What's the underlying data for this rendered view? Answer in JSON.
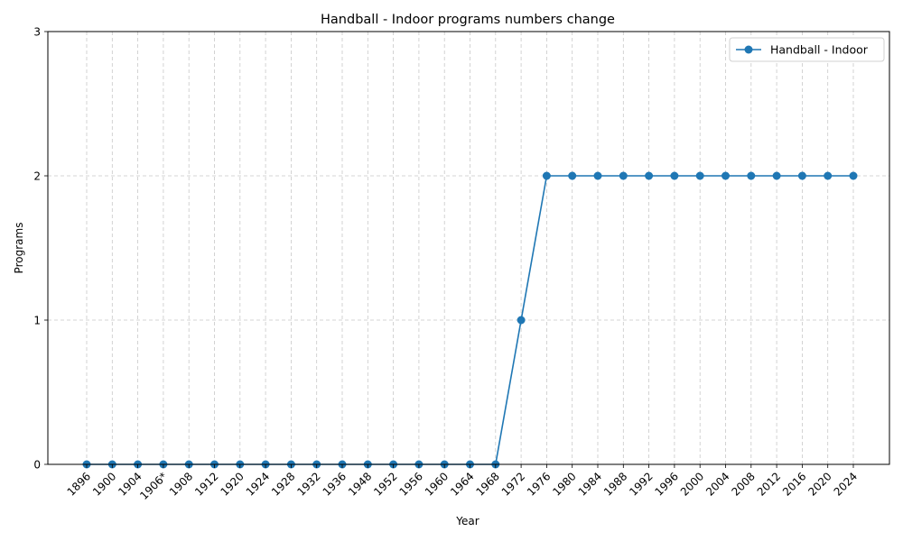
{
  "chart_data": {
    "type": "line",
    "title": "Handball - Indoor programs numbers change",
    "xlabel": "Year",
    "ylabel": "Programs",
    "categories": [
      "1896",
      "1900",
      "1904",
      "1906*",
      "1908",
      "1912",
      "1920",
      "1924",
      "1928",
      "1932",
      "1936",
      "1948",
      "1952",
      "1956",
      "1960",
      "1964",
      "1968",
      "1972",
      "1976",
      "1980",
      "1984",
      "1988",
      "1992",
      "1996",
      "2000",
      "2004",
      "2008",
      "2012",
      "2016",
      "2020",
      "2024"
    ],
    "series": [
      {
        "name": "Handball - Indoor",
        "color": "#1f77b4",
        "marker": "circle",
        "values": [
          0,
          0,
          0,
          0,
          0,
          0,
          0,
          0,
          0,
          0,
          0,
          0,
          0,
          0,
          0,
          0,
          0,
          1,
          2,
          2,
          2,
          2,
          2,
          2,
          2,
          2,
          2,
          2,
          2,
          2,
          2
        ]
      }
    ],
    "ylim": [
      0,
      3
    ],
    "yticks": [
      0,
      1,
      2,
      3
    ],
    "grid": true,
    "grid_color": "#c8c8c8",
    "legend_position": "top-right"
  }
}
